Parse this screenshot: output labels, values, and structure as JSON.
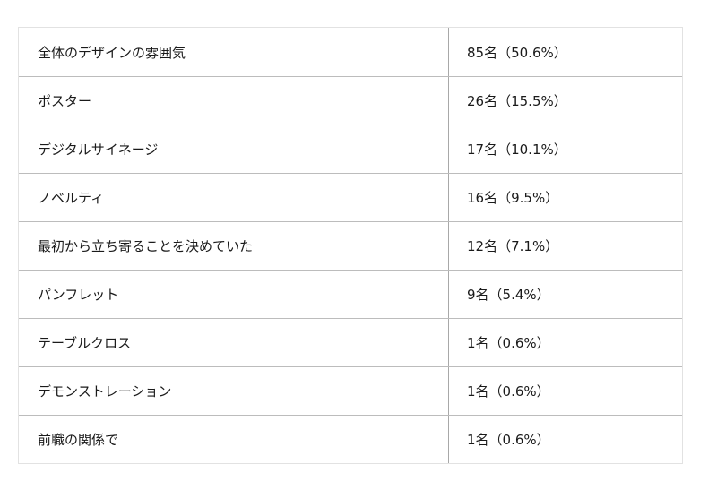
{
  "table": {
    "rows": [
      {
        "item": "全体のデザインの雰囲気",
        "count": "85名（50.6%）"
      },
      {
        "item": "ポスター",
        "count": "26名（15.5%）"
      },
      {
        "item": "デジタルサイネージ",
        "count": "17名（10.1%）"
      },
      {
        "item": "ノベルティ",
        "count": "16名（9.5%）"
      },
      {
        "item": "最初から立ち寄ることを決めていた",
        "count": "12名（7.1%）"
      },
      {
        "item": "パンフレット",
        "count": "9名（5.4%）"
      },
      {
        "item": "テーブルクロス",
        "count": "1名（0.6%）"
      },
      {
        "item": "デモンストレーション",
        "count": "1名（0.6%）"
      },
      {
        "item": "前職の関係で",
        "count": "1名（0.6%）"
      }
    ]
  }
}
